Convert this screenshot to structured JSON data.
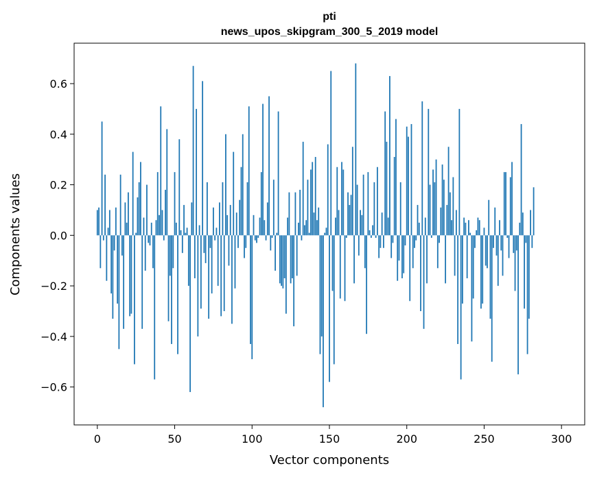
{
  "chart_data": {
    "type": "bar",
    "title": "pti",
    "subtitle": "news_upos_skipgram_300_5_2019 model",
    "xlabel": "Vector components",
    "ylabel": "Components values",
    "xlim": [
      -15,
      315
    ],
    "ylim": [
      -0.75,
      0.76
    ],
    "xticks": [
      0,
      50,
      100,
      150,
      200,
      250,
      300
    ],
    "yticks": [
      -0.6,
      -0.4,
      -0.2,
      0.0,
      0.2,
      0.4,
      0.6
    ],
    "xtick_labels": [
      "0",
      "50",
      "100",
      "150",
      "200",
      "250",
      "300"
    ],
    "ytick_labels": [
      "−0.6",
      "−0.4",
      "−0.2",
      "0.0",
      "0.2",
      "0.4",
      "0.6"
    ],
    "bar_color": "#1f77b4",
    "grid": false,
    "values": [
      0.1,
      0.11,
      -0.13,
      0.45,
      -0.02,
      0.24,
      -0.18,
      0.03,
      0.1,
      -0.23,
      -0.33,
      -0.06,
      0.11,
      -0.27,
      -0.45,
      0.24,
      -0.08,
      -0.37,
      0.13,
      0.05,
      0.17,
      -0.32,
      -0.31,
      0.33,
      -0.51,
      0.01,
      0.15,
      0.21,
      0.29,
      -0.37,
      0.07,
      -0.14,
      0.2,
      -0.03,
      -0.04,
      0.05,
      -0.13,
      -0.57,
      0.06,
      0.25,
      0.08,
      0.51,
      0.1,
      -0.02,
      0.18,
      0.42,
      -0.34,
      -0.16,
      -0.43,
      -0.13,
      0.25,
      0.05,
      -0.47,
      0.38,
      0.02,
      -0.07,
      0.12,
      0.01,
      0.03,
      -0.2,
      -0.62,
      0.13,
      0.67,
      -0.17,
      0.5,
      -0.4,
      0.04,
      -0.29,
      0.61,
      -0.07,
      -0.11,
      0.21,
      -0.33,
      -0.05,
      -0.23,
      0.11,
      -0.02,
      0.03,
      -0.2,
      0.13,
      -0.32,
      0.21,
      -0.3,
      0.4,
      0.08,
      -0.12,
      0.12,
      -0.35,
      0.33,
      -0.21,
      0.09,
      -0.05,
      0.14,
      0.27,
      0.4,
      -0.09,
      -0.05,
      0.21,
      0.51,
      -0.43,
      -0.49,
      0.08,
      -0.02,
      -0.03,
      -0.01,
      0.07,
      0.25,
      0.52,
      0.06,
      -0.02,
      0.13,
      0.55,
      -0.06,
      -0.01,
      0.22,
      -0.14,
      0.01,
      0.49,
      -0.19,
      -0.2,
      -0.21,
      -0.17,
      -0.31,
      0.07,
      0.17,
      -0.19,
      -0.17,
      -0.36,
      0.17,
      -0.16,
      0.05,
      0.18,
      -0.02,
      0.37,
      0.04,
      0.06,
      0.22,
      0.01,
      0.26,
      0.29,
      0.09,
      0.31,
      0.06,
      0.11,
      -0.47,
      -0.4,
      -0.68,
      0.01,
      0.03,
      0.36,
      -0.58,
      0.65,
      -0.22,
      -0.51,
      0.07,
      0.27,
      0.1,
      -0.25,
      0.29,
      0.26,
      -0.26,
      -0.01,
      0.17,
      0.12,
      0.16,
      0.35,
      -0.19,
      0.68,
      0.2,
      -0.08,
      0.1,
      0.08,
      0.24,
      -0.13,
      -0.39,
      0.25,
      0.02,
      -0.01,
      0.04,
      0.21,
      -0.01,
      0.27,
      -0.09,
      -0.05,
      0.09,
      -0.05,
      0.49,
      0.37,
      0.07,
      0.63,
      -0.09,
      -0.03,
      0.31,
      0.46,
      -0.18,
      -0.1,
      0.21,
      -0.17,
      -0.15,
      -0.04,
      0.43,
      0.39,
      -0.26,
      0.44,
      -0.13,
      -0.05,
      -0.02,
      0.12,
      0.05,
      -0.3,
      0.53,
      -0.37,
      0.07,
      -0.19,
      0.5,
      0.2,
      -0.01,
      0.26,
      0.21,
      0.3,
      -0.13,
      -0.03,
      0.11,
      0.28,
      0.22,
      -0.19,
      0.12,
      0.35,
      0.17,
      0.06,
      0.23,
      -0.16,
      0.1,
      -0.43,
      0.5,
      -0.57,
      -0.27,
      0.07,
      0.05,
      -0.17,
      0.06,
      0.01,
      -0.42,
      -0.25,
      -0.05,
      0.02,
      0.07,
      0.06,
      -0.29,
      -0.27,
      0.03,
      -0.12,
      -0.13,
      0.14,
      -0.33,
      -0.5,
      -0.05,
      0.11,
      -0.08,
      -0.2,
      0.06,
      -0.06,
      -0.16,
      0.25,
      0.25,
      -0.01,
      -0.09,
      0.23,
      0.29,
      -0.07,
      -0.22,
      -0.06,
      -0.55,
      0.05,
      0.44,
      0.09,
      -0.29,
      -0.03,
      -0.47,
      -0.33,
      0.1,
      -0.05,
      0.19
    ]
  }
}
